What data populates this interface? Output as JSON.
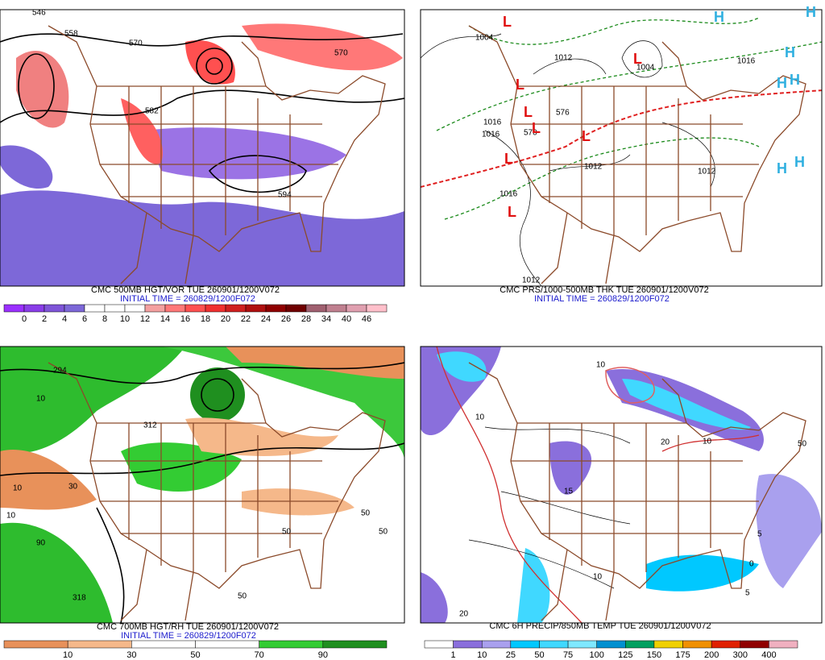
{
  "panels": [
    {
      "title": "CMC 500MB HGT/VOR TUE 260901/1200V072",
      "initial_time": "INITIAL TIME = 260829/1200F072",
      "map_labels": [
        "546",
        "558",
        "570",
        "570",
        "582",
        "594"
      ],
      "colorbar": {
        "labels": [
          0,
          2,
          4,
          6,
          8,
          10,
          12,
          14,
          16,
          18,
          20,
          22,
          24,
          26,
          28,
          34,
          40,
          46
        ],
        "colors": [
          "#9b30ff",
          "#8a3ee8",
          "#7f55d8",
          "#7d68d8",
          "#ffffff",
          "#ffffff",
          "#ffffff",
          "#f4a0a0",
          "#ff7878",
          "#ff5050",
          "#f03030",
          "#d02020",
          "#b01010",
          "#900000",
          "#700000",
          "#a06070",
          "#c08090",
          "#e0a0b0",
          "#ffc0cb"
        ]
      }
    },
    {
      "title": "CMC PRS/1000-500MB THK TUE 260901/1200V072",
      "initial_time": "INITIAL TIME = 260829/1200F072",
      "map_labels": [
        "1004",
        "1012",
        "1004",
        "1016",
        "1016",
        "1012",
        "1012",
        "1016",
        "1016",
        "1012",
        "570",
        "576"
      ],
      "pressure_centers": [
        "L",
        "L",
        "L",
        "L",
        "L",
        "L",
        "L",
        "L",
        "H",
        "H",
        "H",
        "H",
        "H",
        "H",
        "H"
      ]
    },
    {
      "title": "CMC 700MB HGT/RH TUE 260901/1200V072",
      "initial_time": "INITIAL TIME = 260829/1200F072",
      "map_labels": [
        "294",
        "312",
        "318",
        "10",
        "10",
        "10",
        "30",
        "50",
        "50",
        "50",
        "90",
        "50"
      ],
      "colorbar": {
        "labels": [
          10,
          30,
          50,
          70,
          90
        ],
        "colors": [
          "#e8915a",
          "#f5b88a",
          "#ffffff",
          "#ffffff",
          "#33cc33",
          "#1f8f1f"
        ]
      }
    },
    {
      "title": "CMC 6H PRECIP/850MB TEMP TUE 260901/1200V072",
      "map_labels": [
        "10",
        "20",
        "20",
        "10",
        "15",
        "10",
        "5",
        "0",
        "50",
        "5",
        "10"
      ],
      "colorbar": {
        "labels": [
          1,
          10,
          25,
          50,
          75,
          100,
          125,
          150,
          175,
          200,
          300,
          400
        ],
        "colors": [
          "#ffffff",
          "#8a6fdc",
          "#a9a0ee",
          "#00c8ff",
          "#40d8ff",
          "#7fe8ff",
          "#0090d0",
          "#00a060",
          "#f0d000",
          "#f09000",
          "#e02000",
          "#900000",
          "#f0b0c0"
        ]
      }
    }
  ]
}
